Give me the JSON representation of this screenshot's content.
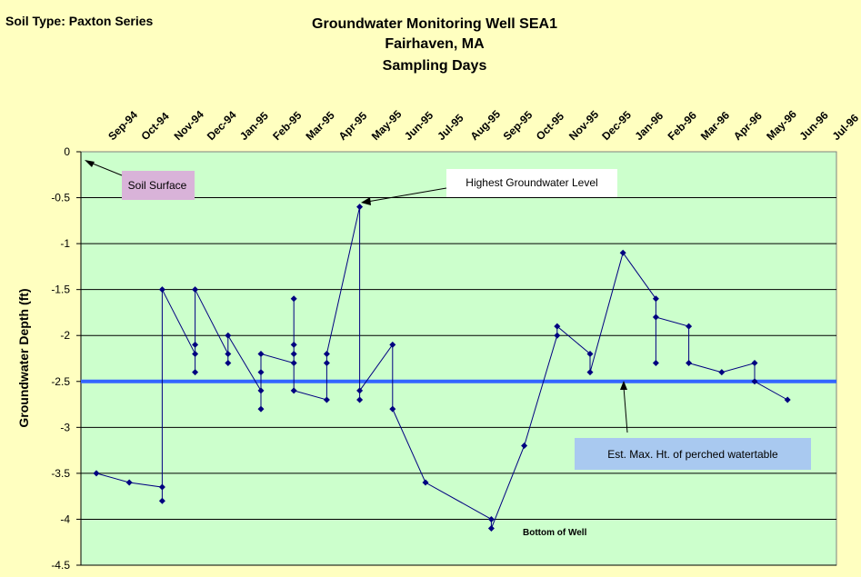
{
  "header": {
    "soil_type": "Soil Type:  Paxton Series",
    "title_lines": [
      "Groundwater Monitoring Well SEA1",
      "Fairhaven, MA",
      "Sampling Days"
    ]
  },
  "chart_data": {
    "type": "line",
    "title": "Groundwater Monitoring Well SEA1 / Fairhaven, MA / Sampling Days",
    "ylabel": "Groundwater Depth (ft)",
    "xlabel": "",
    "ylim": [
      -4.5,
      0
    ],
    "yticks": [
      0,
      -0.5,
      -1,
      -1.5,
      -2,
      -2.5,
      -3,
      -3.5,
      -4,
      -4.5
    ],
    "xaxis_position": "top",
    "x_categories": [
      "Sep-94",
      "Oct-94",
      "Nov-94",
      "Dec-94",
      "Jan-95",
      "Feb-95",
      "Mar-95",
      "Apr-95",
      "May-95",
      "Jun-95",
      "Jul-95",
      "Aug-95",
      "Sep-95",
      "Oct-95",
      "Nov-95",
      "Dec-95",
      "Jan-96",
      "Feb-96",
      "Mar-96",
      "Apr-96",
      "May-96",
      "Jun-96",
      "Jul-96"
    ],
    "grid": true,
    "plot_background": "#ccffcc",
    "page_background": "#ffffc0",
    "series_color": "#000080",
    "series": [
      {
        "values": [
          [
            0,
            -3.5
          ],
          [
            1,
            -3.6
          ],
          [
            2,
            -3.65
          ],
          [
            2,
            -3.8
          ],
          [
            2,
            -1.5
          ],
          [
            3,
            -2.2
          ],
          [
            3,
            -2.4
          ],
          [
            3,
            -2.1
          ],
          [
            3,
            -1.5
          ],
          [
            4,
            -2.2
          ],
          [
            4,
            -2.3
          ],
          [
            4,
            -2.0
          ],
          [
            5,
            -2.6
          ],
          [
            5,
            -2.8
          ],
          [
            5,
            -2.4
          ],
          [
            5,
            -2.2
          ],
          [
            6,
            -2.3
          ],
          [
            6,
            -2.1
          ],
          [
            6,
            -2.2
          ],
          [
            6,
            -1.6
          ],
          [
            6,
            -2.6
          ],
          [
            7,
            -2.7
          ],
          [
            7,
            -2.3
          ],
          [
            7,
            -2.2
          ],
          [
            8,
            -0.6
          ],
          [
            8,
            -2.7
          ],
          [
            8,
            -2.6
          ],
          [
            9,
            -2.1
          ],
          [
            9,
            -2.8
          ],
          [
            10,
            -3.6
          ],
          [
            12,
            -4.0
          ],
          [
            12,
            -4.1
          ],
          [
            13,
            -3.2
          ],
          [
            14,
            -2.0
          ],
          [
            14,
            -1.9
          ],
          [
            15,
            -2.2
          ],
          [
            15,
            -2.4
          ],
          [
            16,
            -1.1
          ],
          [
            17,
            -1.6
          ],
          [
            17,
            -2.3
          ],
          [
            17,
            -1.8
          ],
          [
            18,
            -1.9
          ],
          [
            18,
            -2.3
          ],
          [
            19,
            -2.4
          ],
          [
            20,
            -2.3
          ],
          [
            20,
            -2.5
          ],
          [
            21,
            -2.7
          ]
        ]
      }
    ],
    "reference_line": {
      "value": -2.5,
      "color": "#3366ff"
    },
    "annotations": {
      "soil_surface": "Soil Surface",
      "highest": "Highest Groundwater Level",
      "perched": "Est. Max. Ht. of perched watertable",
      "bottom": "Bottom of Well"
    },
    "annotation_colors": {
      "soil_surface": "#d9b3d9",
      "highest": "#ffffff",
      "perched": "#a9c9f0"
    }
  }
}
